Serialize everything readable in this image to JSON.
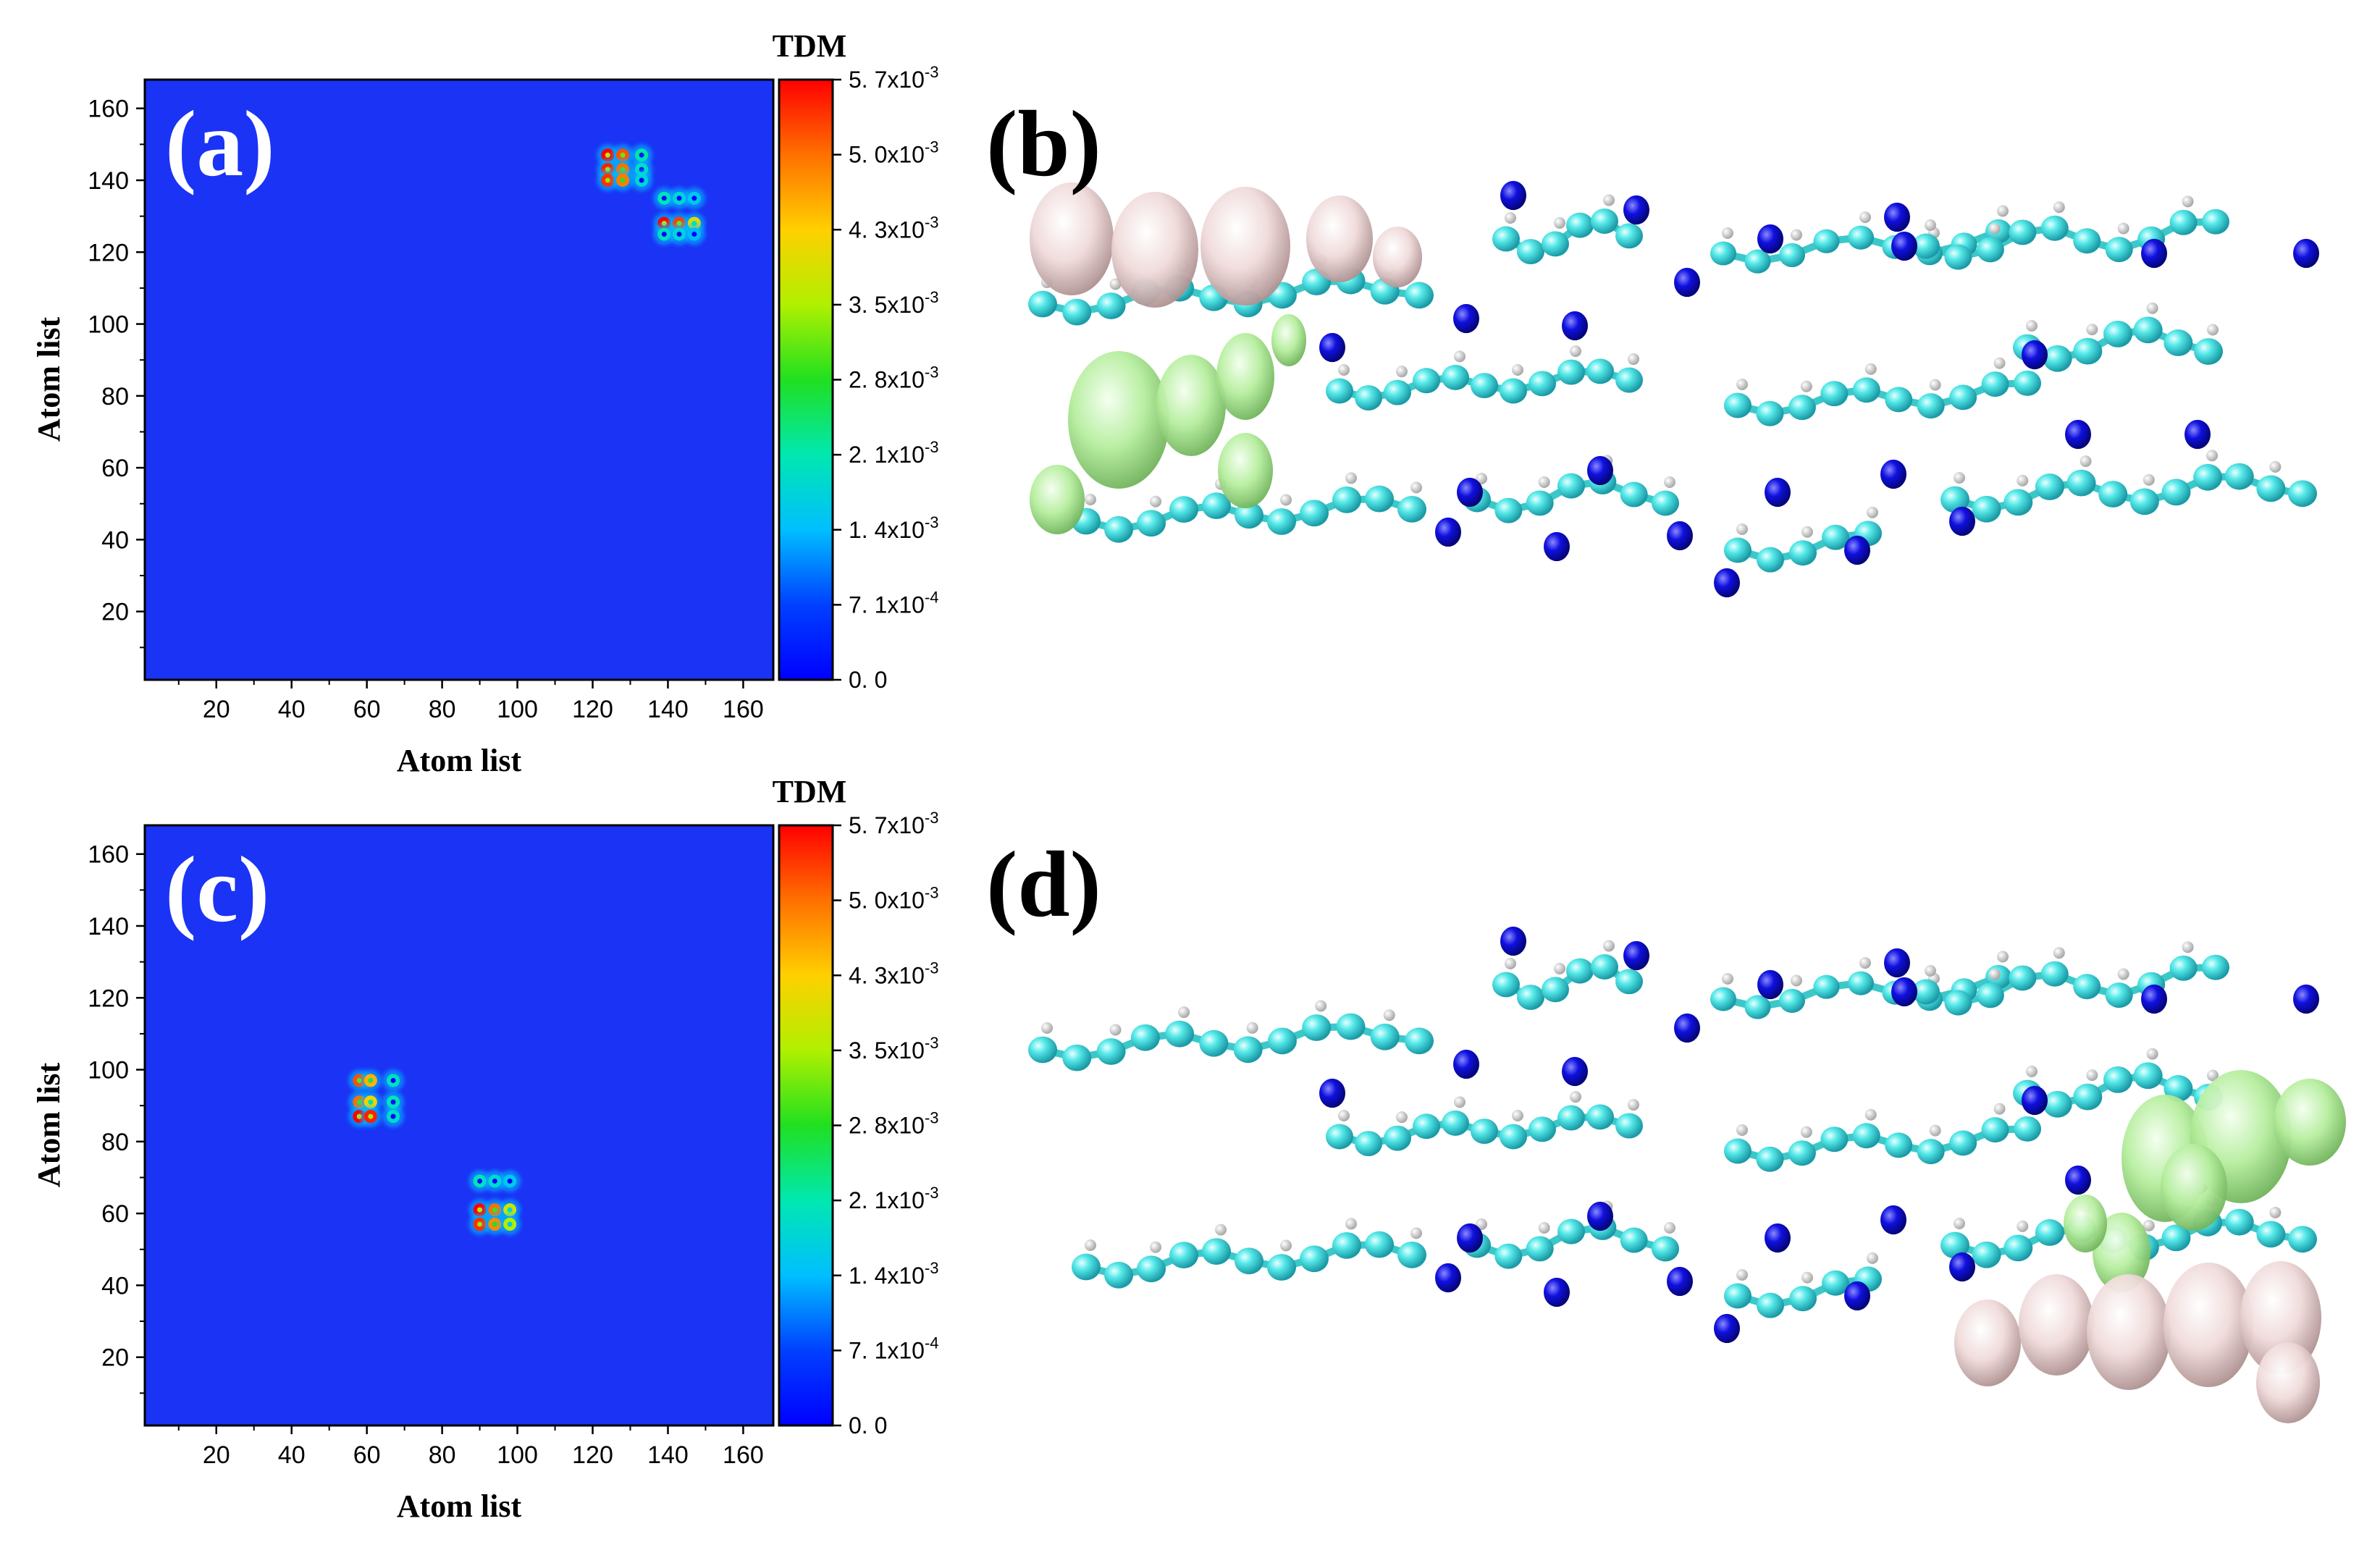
{
  "chart_data": [
    {
      "type": "heatmap",
      "panel_label": "(a)",
      "xlabel": "Atom list",
      "ylabel": "Atom list",
      "xlim": [
        1,
        168
      ],
      "ylim": [
        1,
        168
      ],
      "x_ticks": [
        "20",
        "40",
        "60",
        "80",
        "100",
        "120",
        "140",
        "160"
      ],
      "y_ticks": [
        "20",
        "40",
        "60",
        "80",
        "100",
        "120",
        "140",
        "160"
      ],
      "colorbar": {
        "title": "TDM",
        "range": [
          0.0,
          0.0057
        ],
        "labels": [
          "5. 7x10-3",
          "5. 0x10-3",
          "4. 3x10-3",
          "3. 5x10-3",
          "2. 8x10-3",
          "2. 1x10-3",
          "1. 4x10-3",
          "7. 1x10-4",
          "0. 0"
        ]
      },
      "hotspots": [
        {
          "x": 124,
          "y": 147,
          "value": 0.0057
        },
        {
          "x": 128,
          "y": 147,
          "value": 0.0052
        },
        {
          "x": 124,
          "y": 143,
          "value": 0.0055
        },
        {
          "x": 128,
          "y": 143,
          "value": 0.005
        },
        {
          "x": 124,
          "y": 140,
          "value": 0.0054
        },
        {
          "x": 128,
          "y": 140,
          "value": 0.0049
        },
        {
          "x": 133,
          "y": 147,
          "value": 0.0022
        },
        {
          "x": 133,
          "y": 143,
          "value": 0.002
        },
        {
          "x": 133,
          "y": 140,
          "value": 0.0018
        },
        {
          "x": 139,
          "y": 135,
          "value": 0.0021
        },
        {
          "x": 143,
          "y": 135,
          "value": 0.0018
        },
        {
          "x": 147,
          "y": 135,
          "value": 0.0016
        },
        {
          "x": 139,
          "y": 128,
          "value": 0.0057
        },
        {
          "x": 143,
          "y": 128,
          "value": 0.0053
        },
        {
          "x": 147,
          "y": 128,
          "value": 0.004
        },
        {
          "x": 139,
          "y": 125,
          "value": 0.002
        },
        {
          "x": 143,
          "y": 125,
          "value": 0.0018
        },
        {
          "x": 147,
          "y": 125,
          "value": 0.0014
        }
      ]
    },
    {
      "type": "heatmap",
      "panel_label": "(c)",
      "xlabel": "Atom list",
      "ylabel": "Atom list",
      "xlim": [
        1,
        168
      ],
      "ylim": [
        1,
        168
      ],
      "x_ticks": [
        "20",
        "40",
        "60",
        "80",
        "100",
        "120",
        "140",
        "160"
      ],
      "y_ticks": [
        "20",
        "40",
        "60",
        "80",
        "100",
        "120",
        "140",
        "160"
      ],
      "colorbar": {
        "title": "TDM",
        "range": [
          0.0,
          0.0057
        ],
        "labels": [
          "5. 7x10-3",
          "5. 0x10-3",
          "4. 3x10-3",
          "3. 5x10-3",
          "2. 8x10-3",
          "2. 1x10-3",
          "1. 4x10-3",
          "7. 1x10-4",
          "0. 0"
        ]
      },
      "hotspots": [
        {
          "x": 58,
          "y": 97,
          "value": 0.0052
        },
        {
          "x": 61,
          "y": 97,
          "value": 0.0045
        },
        {
          "x": 58,
          "y": 91,
          "value": 0.005
        },
        {
          "x": 61,
          "y": 91,
          "value": 0.0042
        },
        {
          "x": 58,
          "y": 87,
          "value": 0.0057
        },
        {
          "x": 61,
          "y": 87,
          "value": 0.0055
        },
        {
          "x": 67,
          "y": 97,
          "value": 0.002
        },
        {
          "x": 67,
          "y": 91,
          "value": 0.0021
        },
        {
          "x": 67,
          "y": 87,
          "value": 0.0019
        },
        {
          "x": 90,
          "y": 69,
          "value": 0.0021
        },
        {
          "x": 94,
          "y": 69,
          "value": 0.0019
        },
        {
          "x": 98,
          "y": 69,
          "value": 0.0016
        },
        {
          "x": 90,
          "y": 61,
          "value": 0.0057
        },
        {
          "x": 94,
          "y": 61,
          "value": 0.005
        },
        {
          "x": 98,
          "y": 61,
          "value": 0.0038
        },
        {
          "x": 90,
          "y": 57,
          "value": 0.0054
        },
        {
          "x": 94,
          "y": 57,
          "value": 0.0048
        },
        {
          "x": 98,
          "y": 57,
          "value": 0.0036
        }
      ]
    }
  ],
  "molecular_panels": [
    {
      "label": "(b)",
      "depiction": "hole-electron isosurfaces on left end of stacked molecules"
    },
    {
      "label": "(d)",
      "depiction": "hole-electron isosurfaces on right end of stacked molecules"
    }
  ],
  "colors": {
    "background_map": "#1a33f5",
    "atom_carbon": "#38dcdc",
    "atom_nitrogen": "#1414e6",
    "bond": "#3cc8c8",
    "electron_lobe": "#b8f0a6",
    "hole_lobe": "#f0dcdc"
  }
}
